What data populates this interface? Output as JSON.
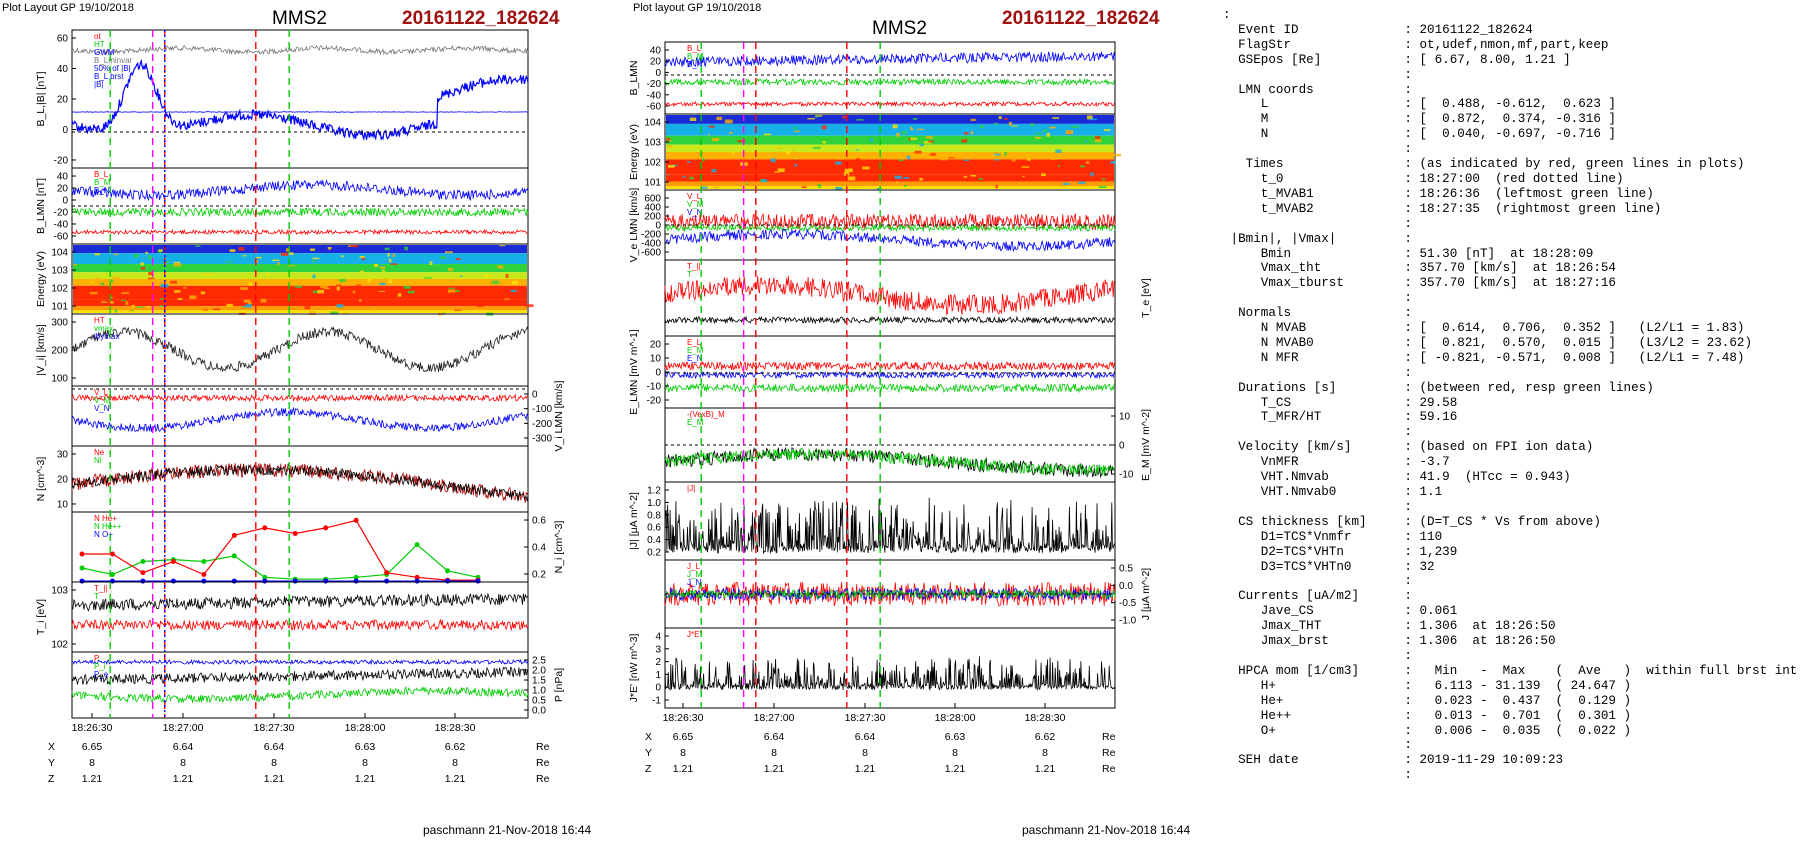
{
  "left": {
    "header": "Plot Layout GP 19/10/2018",
    "spacecraft": "MMS2",
    "event": "20161122_182624",
    "footer": "paschmann 21-Nov-2018 16:44"
  },
  "right": {
    "header": "Plot layout GP 19/10/2018",
    "spacecraft": "MMS2",
    "event": "20161122_182624",
    "footer": "paschmann 21-Nov-2018 16:44"
  },
  "colors": {
    "event": "#a01010",
    "red": "#ff0000",
    "green": "#00cc00",
    "blue": "#0000ff",
    "magenta": "#ff00ff",
    "gray": "#777777",
    "cyan": "#00c0e0"
  },
  "chart_data": [
    {
      "figure": "left",
      "type": "line",
      "x_ticks": [
        "18:26:30",
        "18:27:00",
        "18:27:30",
        "18:28:00",
        "18:28:30"
      ],
      "markers": {
        "red": [
          "18:26:54",
          "18:27:24"
        ],
        "green": [
          "18:26:36",
          "18:27:35"
        ],
        "magenta": [
          "18:26:50"
        ],
        "blue_dotted": [
          "18:26:54"
        ]
      },
      "position_table": {
        "rows": [
          {
            "label": "X",
            "values": [
              "6.65",
              "6.64",
              "6.64",
              "6.63",
              "6.62"
            ],
            "unit": "Re"
          },
          {
            "label": "Y",
            "values": [
              "8",
              "8",
              "8",
              "8",
              "8"
            ],
            "unit": "Re"
          },
          {
            "label": "Z",
            "values": [
              "1.21",
              "1.21",
              "1.21",
              "1.21",
              "1.21"
            ],
            "unit": "Re"
          }
        ]
      },
      "panels": [
        {
          "ylabel": "B_L,|B| [nT]",
          "yticks": [
            "60",
            "40",
            "20",
            "0",
            "-20"
          ],
          "ylim": [
            -30,
            65
          ],
          "legend": [
            "ot",
            "HT",
            "GWM",
            "B_Lminvar",
            "50% of |B|",
            "B_L brst",
            "|B|"
          ],
          "series": [
            {
              "name": "|B|",
              "approx": [
                58,
                59,
                60,
                57,
                60,
                59,
                61,
                60
              ]
            },
            {
              "name": "B_L",
              "approx": [
                0,
                -15,
                40,
                10,
                0,
                -10,
                0,
                25
              ]
            }
          ]
        },
        {
          "ylabel": "B_LMN [nT]",
          "yticks": [
            "40",
            "20",
            "0",
            "-20",
            "-40",
            "-60"
          ],
          "legend": [
            "B_L",
            "B_M",
            "B_N"
          ]
        },
        {
          "ylabel": "Energy (eV)",
          "yticks": [
            "10^4",
            "10^3",
            "10^2",
            "10^1"
          ],
          "type": "heatmap"
        },
        {
          "ylabel": "|V_i| [km/s]",
          "yticks": [
            "300",
            "200",
            "100"
          ],
          "legend": [
            "HT",
            "vmax",
            "ibymax"
          ]
        },
        {
          "ylabel": "V_i LMN [km/s]",
          "yticks": [
            "0",
            "-100",
            "-200",
            "-300"
          ],
          "legend": [
            "V_L",
            "V_M",
            "V_N"
          ]
        },
        {
          "ylabel": "N [cm^-3]",
          "yticks": [
            "30",
            "20",
            "10"
          ],
          "legend": [
            "Ne",
            "Ni"
          ]
        },
        {
          "ylabel": "N_i [cm^-3]",
          "yticks": [
            "0.6",
            "0.4",
            "0.2"
          ],
          "legend": [
            "N He+",
            "N He++",
            "N O+"
          ],
          "series": [
            {
              "name": "N He+",
              "values": [
                0.15,
                0.08,
                0.22,
                0.24,
                0.22,
                0.28,
                0.05,
                0.03,
                0.03,
                0.05,
                0.08,
                0.4,
                0.12,
                0.05
              ]
            },
            {
              "name": "N He++",
              "values": [
                0.3,
                0.3,
                0.1,
                0.22,
                0.08,
                0.5,
                0.58,
                0.52,
                0.58,
                0.66,
                0.1,
                0.05,
                0.02,
                0.02
              ]
            },
            {
              "name": "N O+",
              "values": [
                0.01,
                0.01,
                0.01,
                0.01,
                0.01,
                0.01,
                0.01,
                0.01,
                0.01,
                0.01,
                0.01,
                0.01,
                0.01,
                0.01
              ]
            }
          ]
        },
        {
          "ylabel": "T_i [eV]",
          "yticks": [
            "10^3",
            "10^2"
          ],
          "legend": [
            "T_||",
            "T"
          ]
        },
        {
          "ylabel": "P [nPa]",
          "yticks": [
            "2.5",
            "2.0",
            "1.5",
            "1.0",
            "0.5",
            "0.0"
          ],
          "legend": [
            "P",
            "P_i",
            "P_e"
          ]
        }
      ]
    },
    {
      "figure": "right",
      "type": "line",
      "x_ticks": [
        "18:26:30",
        "18:27:00",
        "18:27:30",
        "18:28:00",
        "18:28:30"
      ],
      "markers": {
        "red": [
          "18:26:54",
          "18:27:24"
        ],
        "green": [
          "18:26:36",
          "18:27:35"
        ],
        "magenta": [
          "18:26:50"
        ]
      },
      "position_table": {
        "rows": [
          {
            "label": "X",
            "values": [
              "6.65",
              "6.64",
              "6.64",
              "6.63",
              "6.62"
            ],
            "unit": "Re"
          },
          {
            "label": "Y",
            "values": [
              "8",
              "8",
              "8",
              "8",
              "8"
            ],
            "unit": "Re"
          },
          {
            "label": "Z",
            "values": [
              "1.21",
              "1.21",
              "1.21",
              "1.21",
              "1.21"
            ],
            "unit": "Re"
          }
        ]
      },
      "panels": [
        {
          "ylabel": "B_LMN",
          "yticks": [
            "40",
            "20",
            "0",
            "-20",
            "-40",
            "-60"
          ],
          "legend": [
            "B_L",
            "B_M",
            "B_N"
          ]
        },
        {
          "ylabel": "Energy (eV)",
          "yticks": [
            "10^4",
            "10^3",
            "10^2",
            "10^1"
          ],
          "type": "heatmap"
        },
        {
          "ylabel": "V_e LMN [km/s]",
          "yticks": [
            "600",
            "400",
            "200",
            "0",
            "-200",
            "-400",
            "-600"
          ],
          "legend": [
            "V_L",
            "V_M",
            "V_N"
          ]
        },
        {
          "ylabel": "T_e [eV]",
          "legend": [
            "T_||",
            "T"
          ]
        },
        {
          "ylabel": "E_LMN [mV m^-1]",
          "yticks": [
            "20",
            "10",
            "0",
            "-10",
            "-20"
          ],
          "legend": [
            "E_L",
            "E_M",
            "E_N"
          ]
        },
        {
          "ylabel": "E_M [mV m^-2]",
          "yticks": [
            "10",
            "0",
            "-10"
          ],
          "legend": [
            "-(VexB)_M",
            "E_M"
          ]
        },
        {
          "ylabel": "|J| [μA m^-2]",
          "yticks": [
            "1.2",
            "1.0",
            "0.8",
            "0.6",
            "0.4",
            "0.2"
          ],
          "legend": [
            "|J|"
          ]
        },
        {
          "ylabel": "J [μA m^-2]",
          "yticks": [
            "0.5",
            "0.0",
            "-0.5",
            "-1.0"
          ],
          "legend": [
            "J_L",
            "J_M",
            "J_N"
          ]
        },
        {
          "ylabel": "J*E' [nW m^-3]",
          "yticks": [
            "4",
            "3",
            "2",
            "1",
            "0",
            "-1"
          ],
          "legend": [
            "J*E'"
          ]
        }
      ]
    }
  ],
  "info_panel": {
    "text": ":\n  Event ID              : 20161122_182624\n  FlagStr               : ot,udef,nmon,mf,part,keep\n  GSEpos [Re]           : [ 6.67, 8.00, 1.21 ]\n                        :\n  LMN coords            :\n     L                  : [  0.488, -0.612,  0.623 ]\n     M                  : [  0.872,  0.374, -0.316 ]\n     N                  : [  0.040, -0.697, -0.716 ]\n                        :\n   Times                : (as indicated by red, green lines in plots)\n     t_0                : 18:27:00  (red dotted line)\n     t_MVAB1            : 18:26:36  (leftmost green line)\n     t_MVAB2            : 18:27:35  (rightmost green line)\n                        :\n |Bmin|, |Vmax|         :\n     Bmin               : 51.30 [nT]  at 18:28:09\n     Vmax_tht           : 357.70 [km/s]  at 18:26:54\n     Vmax_tburst        : 357.70 [km/s]  at 18:27:16\n                        :\n  Normals               :\n     N MVAB             : [  0.614,  0.706,  0.352 ]   (L2/L1 = 1.83)\n     N MVAB0            : [  0.821,  0.570,  0.015 ]   (L3/L2 = 23.62)\n     N MFR              : [ -0.821, -0.571,  0.008 ]   (L2/L1 = 7.48)\n                        :\n  Durations [s]         : (between red, resp green lines)\n     T_CS               : 29.58\n     T_MFR/HT           : 59.16\n                        :\n  Velocity [km/s]       : (based on FPI ion data)\n     VnMFR              : -3.7\n     VHT.Nmvab          : 41.9  (HTcc = 0.943)\n     VHT.Nmvab0         : 1.1\n                        :\n  CS thickness [km]     : (D=T_CS * Vs from above)\n     D1=TCS*Vnmfr       : 110\n     D2=TCS*VHTn        : 1,239\n     D3=TCS*VHTn0       : 32\n                        :\n  Currents [uA/m2]      :\n     Jave_CS            : 0.061\n     Jmax_THT           : 1.306  at 18:26:50\n     Jmax_brst          : 1.306  at 18:26:50\n                        :\n  HPCA mom [1/cm3]      :   Min   -  Max    (  Ave   )  within full brst int\n     H+                 :   6.113 - 31.139  ( 24.647 )\n     He+                :   0.023 -  0.437  (  0.129 )\n     He++               :   0.013 -  0.701  (  0.301 )\n     O+                 :   0.006 -  0.035  (  0.022 )\n                        :\n  SEH date              : 2019-11-29 10:09:23\n                        :"
  }
}
